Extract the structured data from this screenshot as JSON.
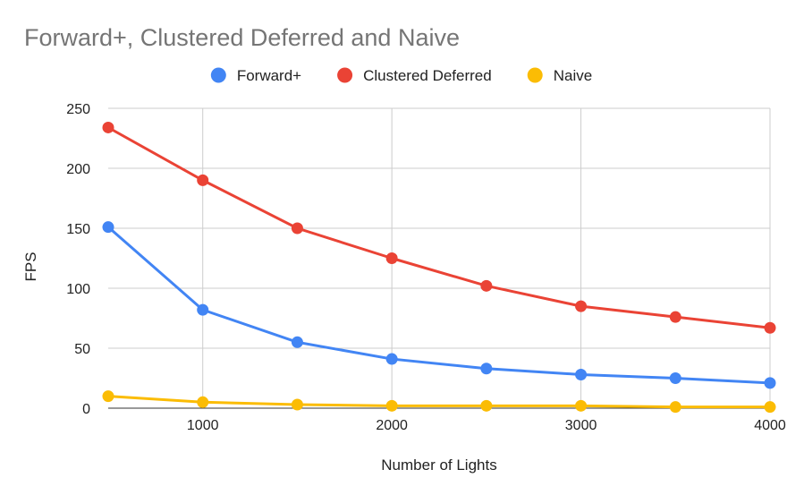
{
  "chart_data": {
    "type": "line",
    "title": "Forward+, Clustered Deferred and Naive",
    "xlabel": "Number of Lights",
    "ylabel": "FPS",
    "x": [
      500,
      1000,
      1500,
      2000,
      2500,
      3000,
      3500,
      4000
    ],
    "xlim": [
      500,
      4000
    ],
    "ylim": [
      0,
      250
    ],
    "x_ticks": [
      1000,
      2000,
      3000,
      4000
    ],
    "x_tick_labels": [
      "1000",
      "2000",
      "3000",
      "4000"
    ],
    "y_ticks": [
      0,
      50,
      100,
      150,
      200,
      250
    ],
    "y_tick_labels": [
      "0",
      "50",
      "100",
      "150",
      "200",
      "250"
    ],
    "grid": true,
    "legend_position": "top",
    "series": [
      {
        "name": "Forward+",
        "color": "#4285F4",
        "values": [
          151,
          82,
          55,
          41,
          33,
          28,
          25,
          21
        ]
      },
      {
        "name": "Clustered Deferred",
        "color": "#EA4335",
        "values": [
          234,
          190,
          150,
          125,
          102,
          85,
          76,
          67
        ]
      },
      {
        "name": "Naive",
        "color": "#FBBC04",
        "values": [
          10,
          5,
          3,
          2,
          2,
          2,
          1,
          1
        ]
      }
    ]
  }
}
